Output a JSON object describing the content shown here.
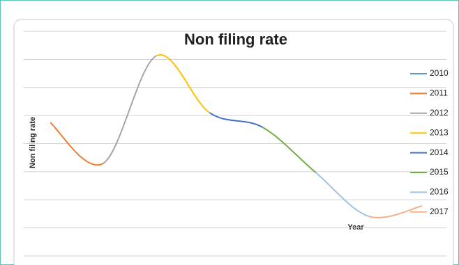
{
  "chart_data": {
    "type": "line",
    "title": "Non filing rate",
    "y_label": "Non filing rate",
    "x_label": "Year",
    "ylim": [
      0,
      8
    ],
    "yticks": [
      0,
      1,
      2,
      3,
      4,
      5,
      6,
      7,
      8
    ],
    "grid": true,
    "legend": "right",
    "smooth": true,
    "series": [
      {
        "name": "2010",
        "color": "#5b9bd5",
        "values": [
          4.75
        ]
      },
      {
        "name": "2011",
        "color": "#ed7d31",
        "values": [
          3.3
        ]
      },
      {
        "name": "2012",
        "color": "#a5a5a5",
        "values": [
          7.13
        ]
      },
      {
        "name": "2013",
        "color": "#ffc000",
        "values": [
          5.1
        ]
      },
      {
        "name": "2014",
        "color": "#4472c4",
        "values": [
          4.58
        ]
      },
      {
        "name": "2015",
        "color": "#70ad47",
        "values": [
          2.97
        ]
      },
      {
        "name": "2016",
        "color": "#9dc3e6",
        "values": [
          1.41
        ]
      },
      {
        "name": "2017",
        "color": "#f4b183",
        "values": [
          1.78
        ]
      }
    ]
  }
}
